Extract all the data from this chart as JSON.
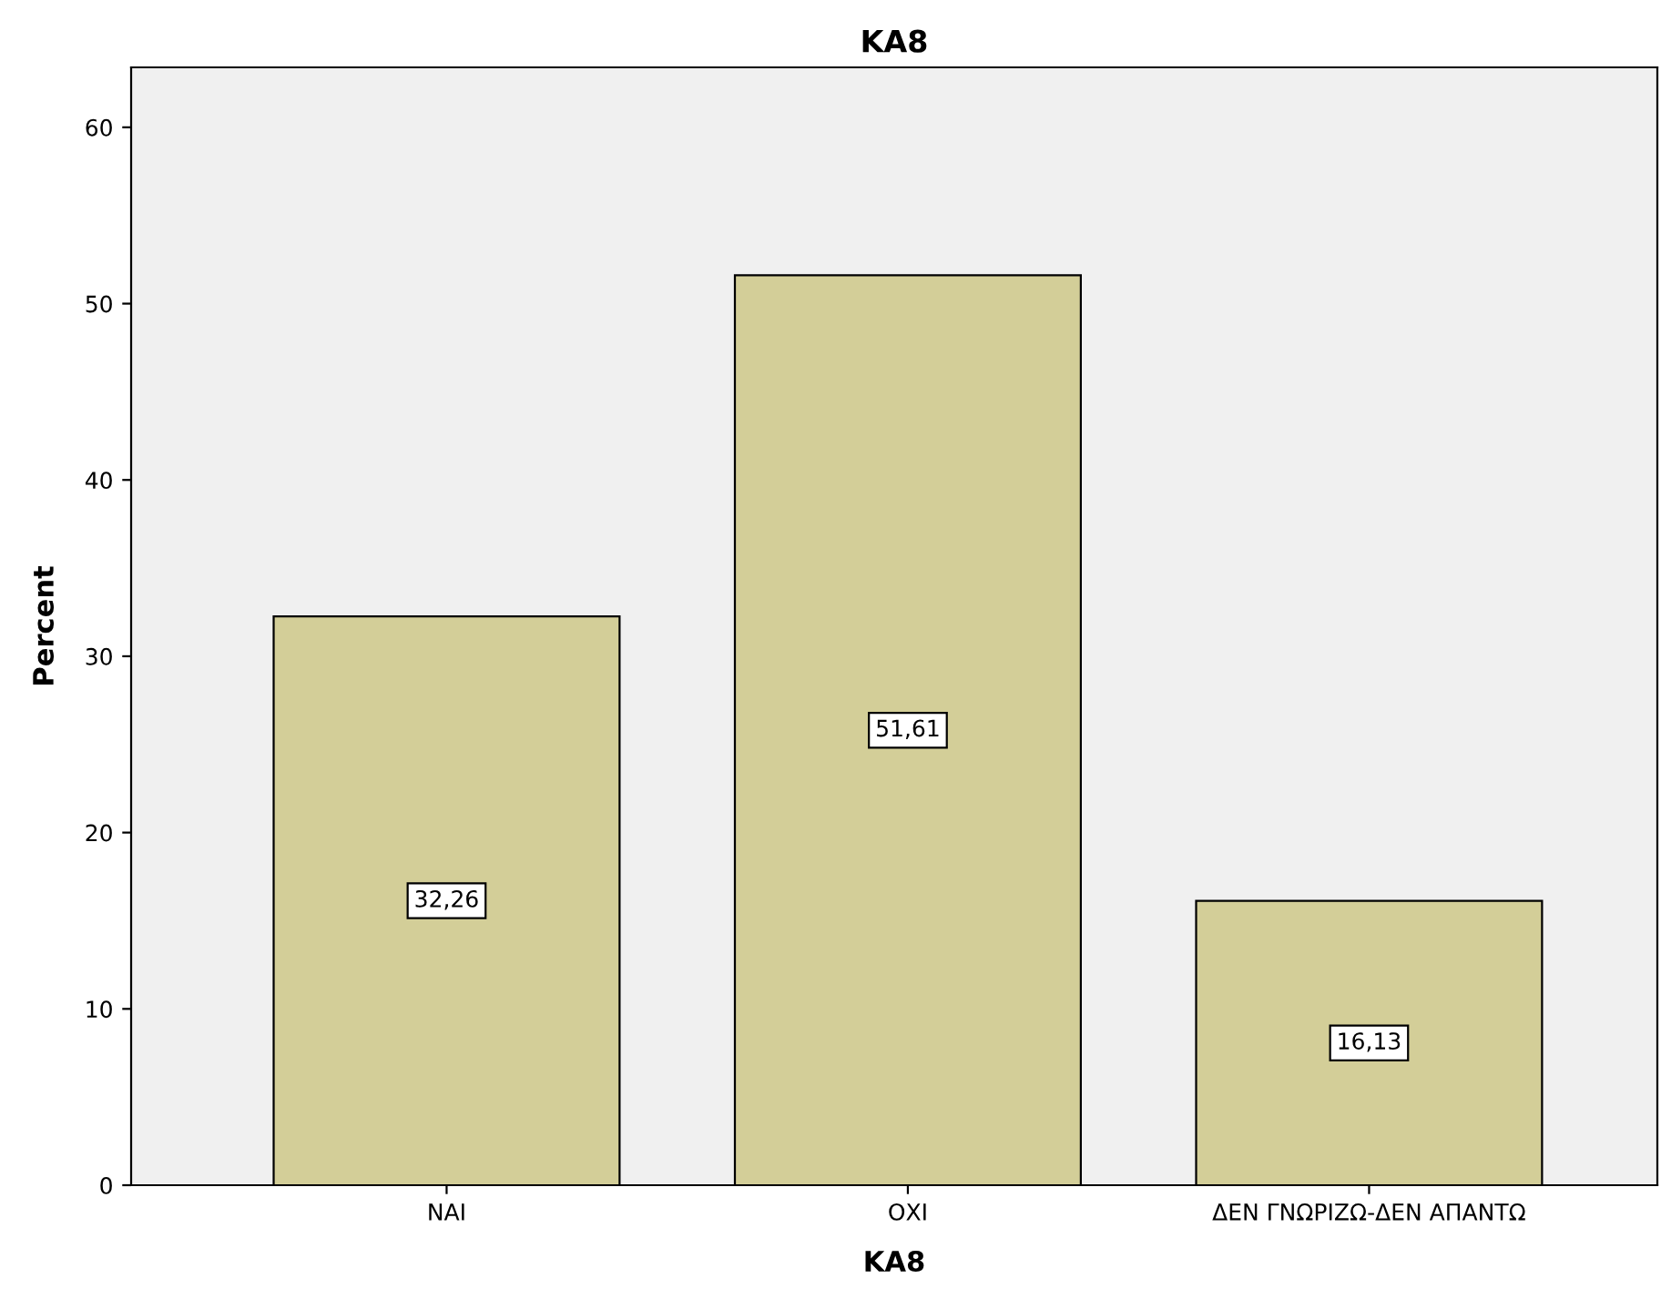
{
  "chart_data": {
    "type": "bar",
    "title": "KA8",
    "xlabel": "KA8",
    "ylabel": "Percent",
    "categories": [
      "ΝΑΙ",
      "ΟΧΙ",
      "ΔΕΝ ΓΝΩΡΙΖΩ-ΔΕΝ ΑΠΑΝΤΩ"
    ],
    "values": [
      32.26,
      51.61,
      16.13
    ],
    "value_labels": [
      "32,26",
      "51,61",
      "16,13"
    ],
    "color": "#d3ce98",
    "ylim": [
      0,
      63.4
    ],
    "yticks": [
      0,
      10,
      20,
      30,
      40,
      50,
      60
    ],
    "grid": false
  }
}
